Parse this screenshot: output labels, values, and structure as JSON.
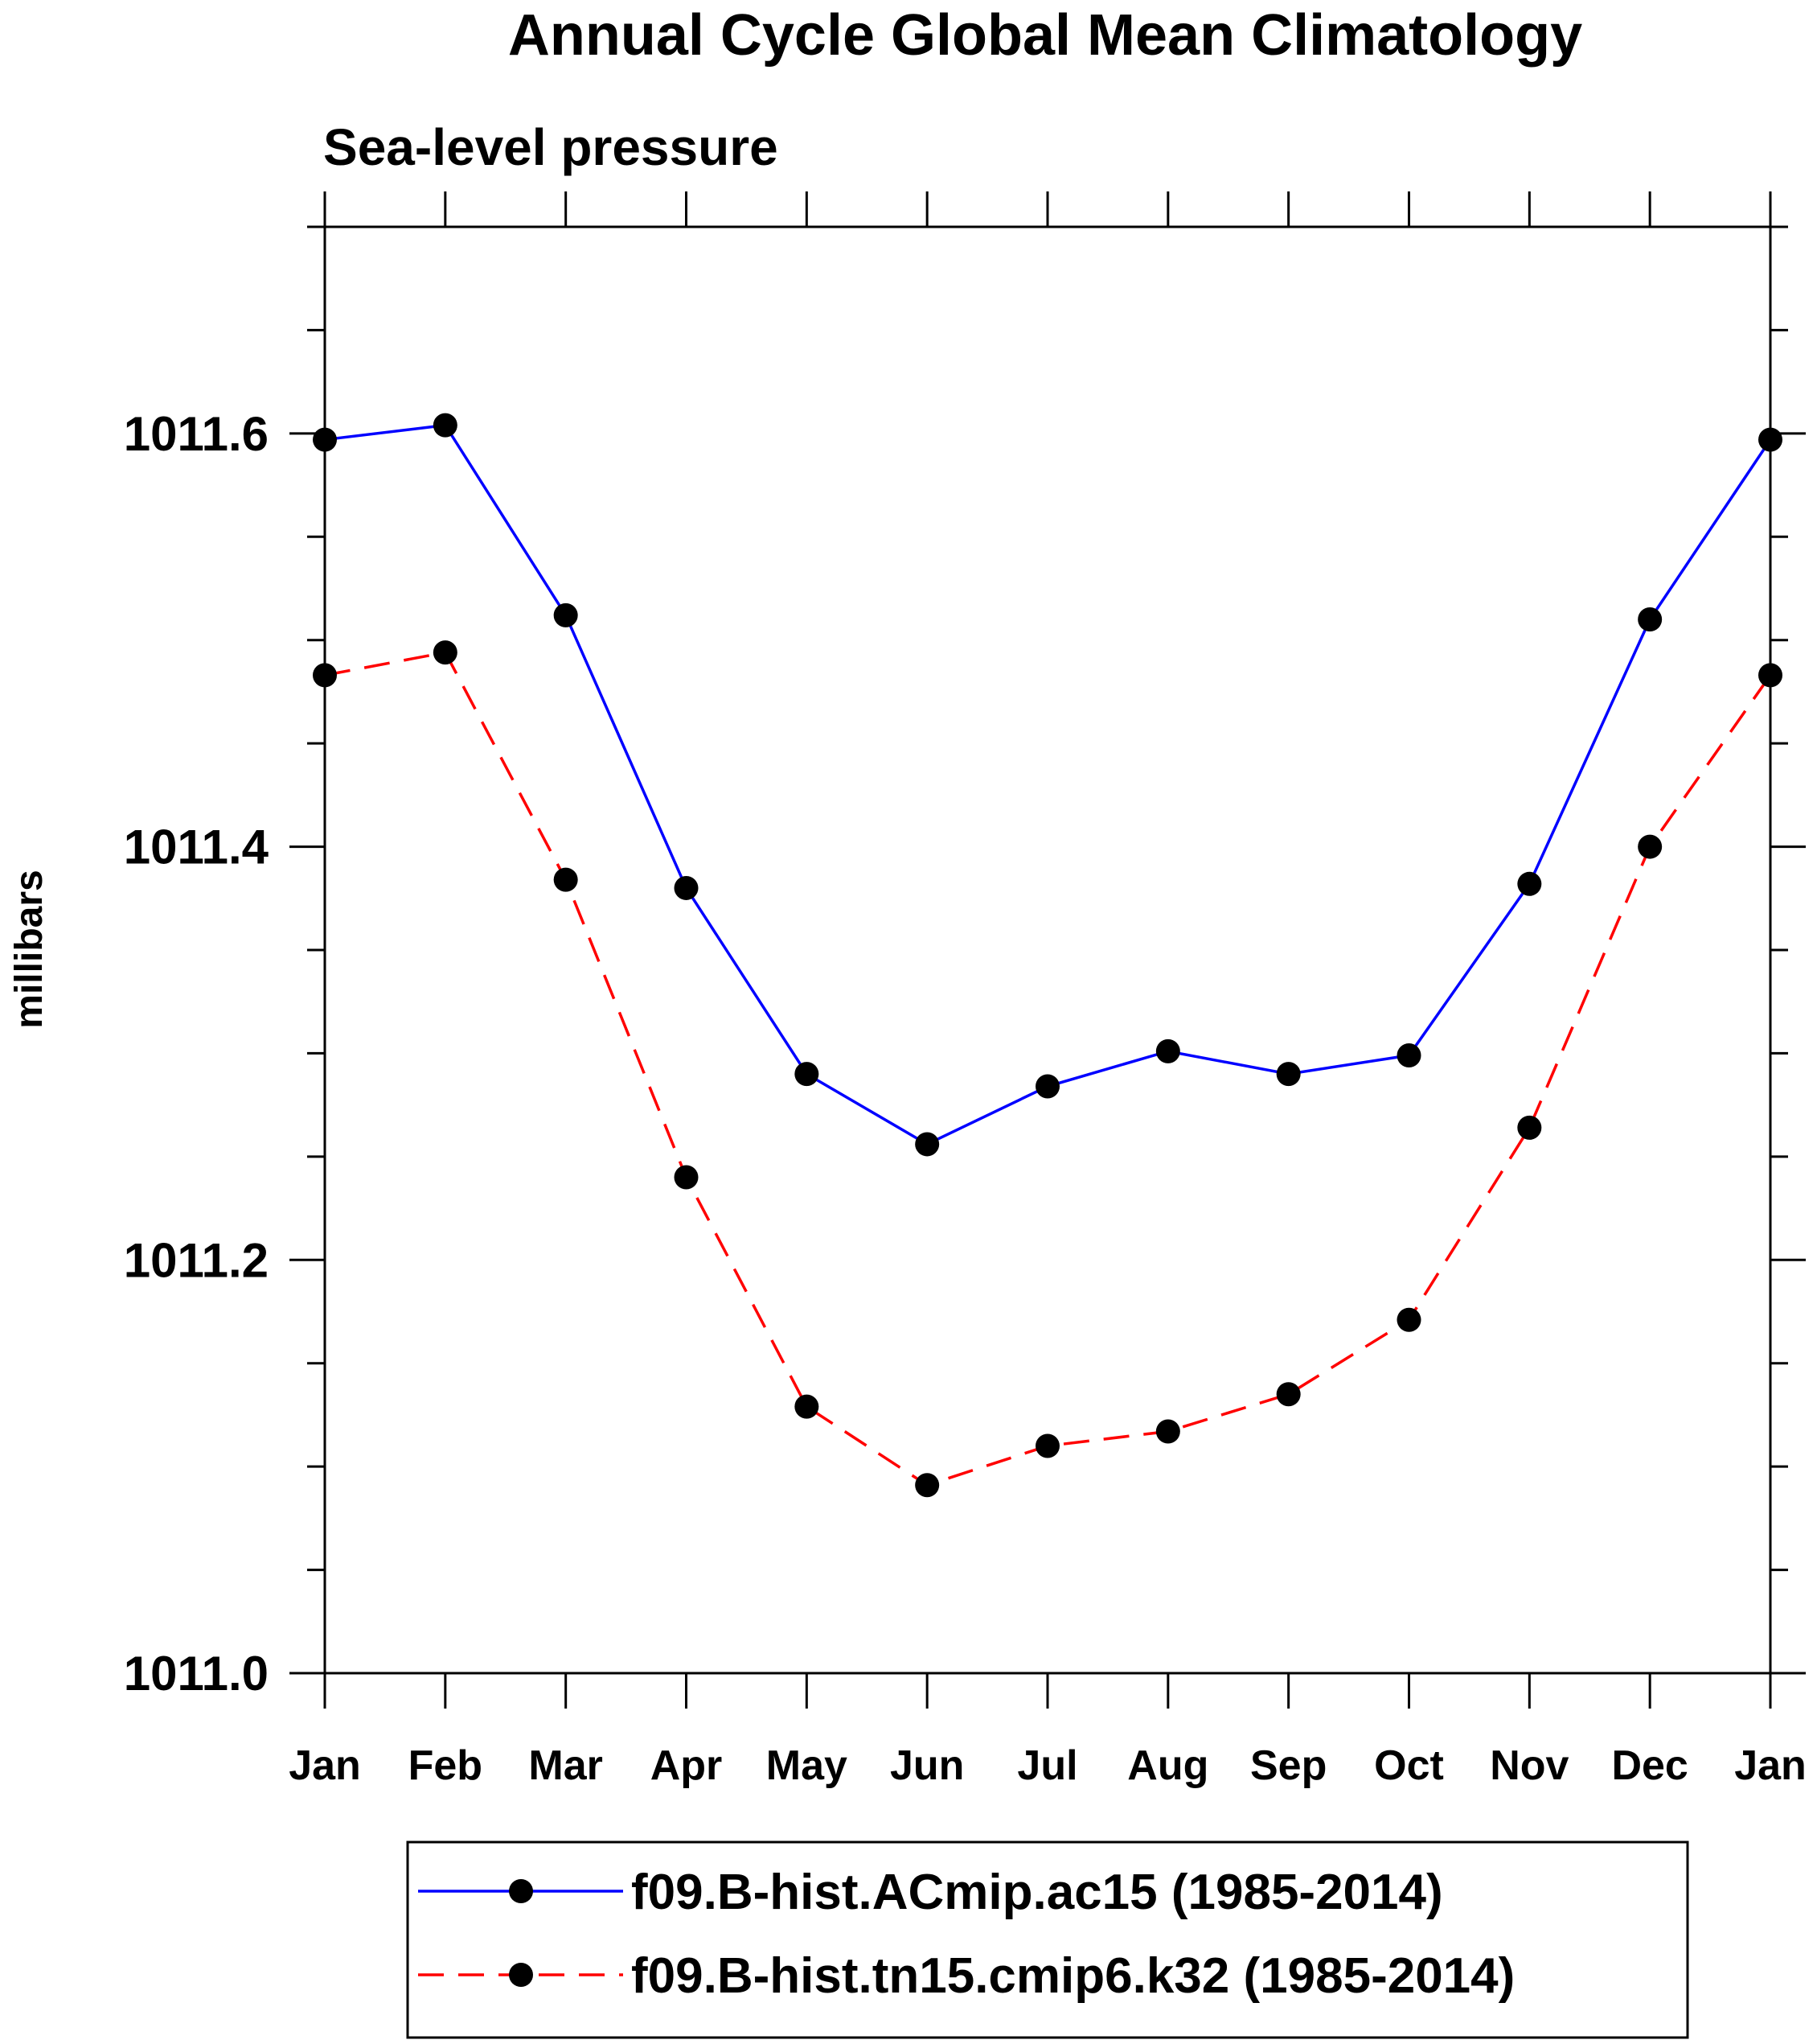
{
  "chart_data": {
    "type": "line",
    "title": "Annual Cycle Global Mean Climatology",
    "subtitle": "Sea-level pressure",
    "xlabel": "",
    "ylabel": "millibars",
    "categories": [
      "Jan",
      "Feb",
      "Mar",
      "Apr",
      "May",
      "Jun",
      "Jul",
      "Aug",
      "Sep",
      "Oct",
      "Nov",
      "Dec",
      "Jan"
    ],
    "ylim": [
      1011.0,
      1011.7
    ],
    "yticks_major": [
      1011.0,
      1011.2,
      1011.4,
      1011.6
    ],
    "ytick_labels": [
      "1011.0",
      "1011.2",
      "1011.4",
      "1011.6"
    ],
    "yticks_minor_step": 0.05,
    "grid": false,
    "legend_position": "bottom",
    "series": [
      {
        "name": "f09.B-hist.ACmip.ac15 (1985-2014)",
        "color": "#0000ff",
        "line_style": "solid",
        "marker": "circle",
        "marker_color": "#000000",
        "values": [
          1011.597,
          1011.604,
          1011.512,
          1011.38,
          1011.29,
          1011.256,
          1011.284,
          1011.301,
          1011.29,
          1011.299,
          1011.382,
          1011.51,
          1011.597
        ]
      },
      {
        "name": "f09.B-hist.tn15.cmip6.k32 (1985-2014)",
        "color": "#ff0000",
        "line_style": "dashed",
        "marker": "circle",
        "marker_color": "#000000",
        "values": [
          1011.483,
          1011.494,
          1011.384,
          1011.24,
          1011.129,
          1011.091,
          1011.11,
          1011.117,
          1011.135,
          1011.171,
          1011.264,
          1011.4,
          1011.483
        ]
      }
    ]
  }
}
